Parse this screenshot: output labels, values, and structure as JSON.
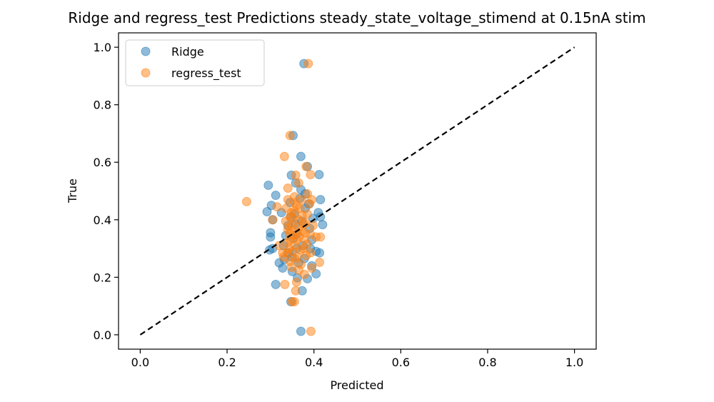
{
  "chart_data": {
    "type": "scatter",
    "title": "Ridge and regress_test Predictions steady_state_voltage_stimend at 0.15nA stim",
    "xlabel": "Predicted",
    "ylabel": "True",
    "xlim": [
      -0.05,
      1.05
    ],
    "ylim": [
      -0.05,
      1.05
    ],
    "xticks": [
      "0.0",
      "0.2",
      "0.4",
      "0.6",
      "0.8",
      "1.0"
    ],
    "yticks": [
      "0.0",
      "0.2",
      "0.4",
      "0.6",
      "0.8",
      "1.0"
    ],
    "grid": false,
    "legend_position": "upper left",
    "reference_line": {
      "x": [
        0,
        1
      ],
      "y": [
        0,
        1
      ],
      "style": "dashed",
      "color": "#000000"
    },
    "series": [
      {
        "name": "Ridge",
        "color": "#1f77b4",
        "points": [
          [
            0.377,
            0.943
          ],
          [
            0.352,
            0.693
          ],
          [
            0.37,
            0.62
          ],
          [
            0.385,
            0.585
          ],
          [
            0.295,
            0.52
          ],
          [
            0.412,
            0.557
          ],
          [
            0.348,
            0.555
          ],
          [
            0.312,
            0.485
          ],
          [
            0.415,
            0.47
          ],
          [
            0.358,
            0.528
          ],
          [
            0.37,
            0.505
          ],
          [
            0.38,
            0.49
          ],
          [
            0.302,
            0.45
          ],
          [
            0.292,
            0.428
          ],
          [
            0.305,
            0.4
          ],
          [
            0.41,
            0.425
          ],
          [
            0.42,
            0.383
          ],
          [
            0.415,
            0.41
          ],
          [
            0.3,
            0.355
          ],
          [
            0.3,
            0.34
          ],
          [
            0.298,
            0.295
          ],
          [
            0.305,
            0.3
          ],
          [
            0.405,
            0.29
          ],
          [
            0.413,
            0.285
          ],
          [
            0.32,
            0.25
          ],
          [
            0.328,
            0.232
          ],
          [
            0.395,
            0.24
          ],
          [
            0.405,
            0.212
          ],
          [
            0.312,
            0.175
          ],
          [
            0.385,
            0.195
          ],
          [
            0.373,
            0.153
          ],
          [
            0.347,
            0.115
          ],
          [
            0.37,
            0.012
          ],
          [
            0.34,
            0.38
          ],
          [
            0.36,
            0.35
          ],
          [
            0.375,
            0.31
          ],
          [
            0.35,
            0.27
          ],
          [
            0.365,
            0.25
          ],
          [
            0.33,
            0.31
          ],
          [
            0.39,
            0.37
          ],
          [
            0.355,
            0.42
          ],
          [
            0.345,
            0.46
          ],
          [
            0.38,
            0.44
          ],
          [
            0.36,
            0.3
          ],
          [
            0.372,
            0.395
          ],
          [
            0.335,
            0.345
          ],
          [
            0.395,
            0.33
          ],
          [
            0.35,
            0.22
          ],
          [
            0.362,
            0.198
          ],
          [
            0.388,
            0.455
          ],
          [
            0.325,
            0.425
          ],
          [
            0.398,
            0.405
          ],
          [
            0.342,
            0.285
          ],
          [
            0.378,
            0.265
          ],
          [
            0.352,
            0.335
          ],
          [
            0.368,
            0.475
          ],
          [
            0.332,
            0.262
          ],
          [
            0.392,
            0.3
          ],
          [
            0.358,
            0.385
          ],
          [
            0.347,
            0.41
          ]
        ]
      },
      {
        "name": "regress_test",
        "color": "#ff7f0e",
        "points": [
          [
            0.387,
            0.943
          ],
          [
            0.345,
            0.693
          ],
          [
            0.332,
            0.62
          ],
          [
            0.382,
            0.585
          ],
          [
            0.392,
            0.557
          ],
          [
            0.358,
            0.555
          ],
          [
            0.365,
            0.528
          ],
          [
            0.34,
            0.51
          ],
          [
            0.385,
            0.49
          ],
          [
            0.395,
            0.47
          ],
          [
            0.245,
            0.463
          ],
          [
            0.315,
            0.445
          ],
          [
            0.305,
            0.4
          ],
          [
            0.398,
            0.38
          ],
          [
            0.405,
            0.34
          ],
          [
            0.415,
            0.34
          ],
          [
            0.32,
            0.31
          ],
          [
            0.328,
            0.285
          ],
          [
            0.392,
            0.285
          ],
          [
            0.413,
            0.252
          ],
          [
            0.395,
            0.232
          ],
          [
            0.378,
            0.21
          ],
          [
            0.333,
            0.175
          ],
          [
            0.36,
            0.183
          ],
          [
            0.358,
            0.153
          ],
          [
            0.355,
            0.115
          ],
          [
            0.35,
            0.115
          ],
          [
            0.393,
            0.012
          ],
          [
            0.34,
            0.47
          ],
          [
            0.355,
            0.43
          ],
          [
            0.365,
            0.4
          ],
          [
            0.35,
            0.38
          ],
          [
            0.372,
            0.36
          ],
          [
            0.345,
            0.35
          ],
          [
            0.36,
            0.33
          ],
          [
            0.338,
            0.32
          ],
          [
            0.375,
            0.3
          ],
          [
            0.35,
            0.29
          ],
          [
            0.362,
            0.27
          ],
          [
            0.345,
            0.255
          ],
          [
            0.37,
            0.245
          ],
          [
            0.33,
            0.27
          ],
          [
            0.385,
            0.42
          ],
          [
            0.355,
            0.46
          ],
          [
            0.345,
            0.41
          ],
          [
            0.368,
            0.44
          ],
          [
            0.38,
            0.39
          ],
          [
            0.335,
            0.395
          ],
          [
            0.392,
            0.35
          ],
          [
            0.357,
            0.31
          ],
          [
            0.342,
            0.3
          ],
          [
            0.378,
            0.33
          ],
          [
            0.364,
            0.375
          ],
          [
            0.352,
            0.345
          ],
          [
            0.373,
            0.415
          ],
          [
            0.34,
            0.365
          ],
          [
            0.36,
            0.45
          ],
          [
            0.348,
            0.235
          ],
          [
            0.365,
            0.225
          ],
          [
            0.382,
            0.275
          ],
          [
            0.336,
            0.44
          ],
          [
            0.39,
            0.455
          ],
          [
            0.355,
            0.48
          ],
          [
            0.372,
            0.47
          ],
          [
            0.346,
            0.33
          ],
          [
            0.361,
            0.355
          ],
          [
            0.377,
            0.385
          ],
          [
            0.351,
            0.405
          ],
          [
            0.339,
            0.285
          ],
          [
            0.369,
            0.295
          ],
          [
            0.384,
            0.315
          ],
          [
            0.356,
            0.265
          ],
          [
            0.343,
            0.375
          ],
          [
            0.366,
            0.34
          ],
          [
            0.38,
            0.355
          ],
          [
            0.348,
            0.425
          ]
        ]
      }
    ]
  }
}
